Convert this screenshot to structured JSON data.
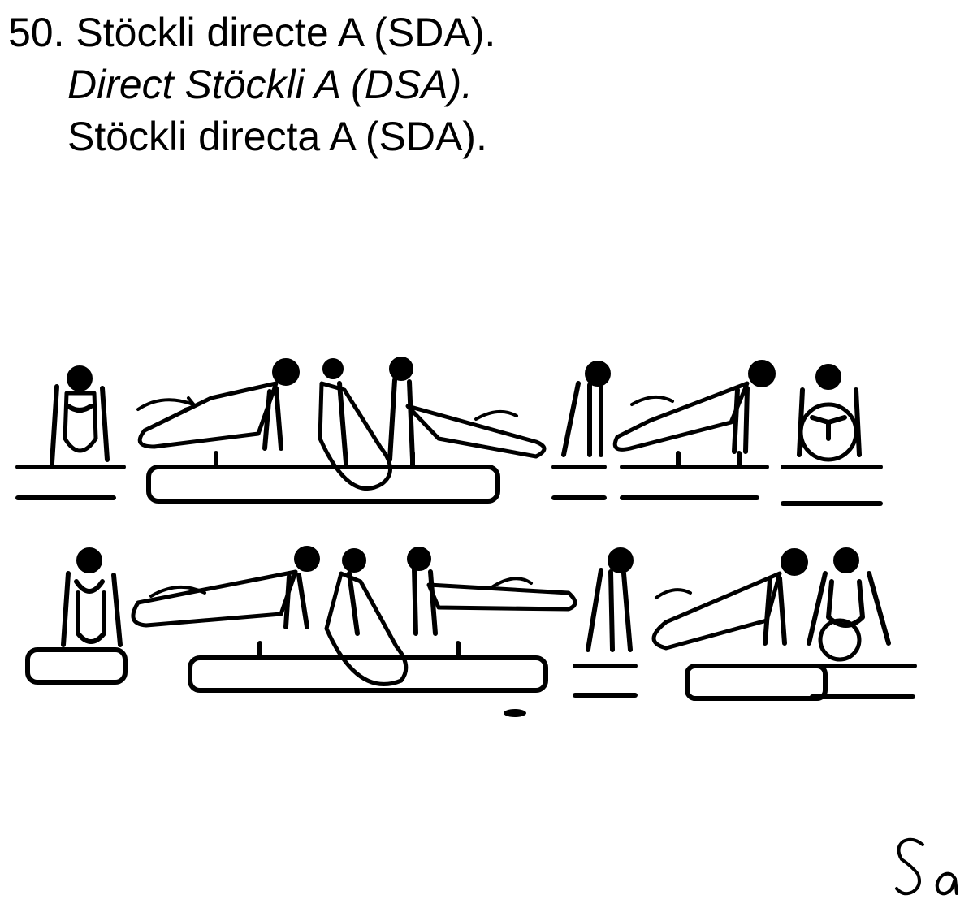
{
  "header": {
    "line_fr": "50. Stöckli directe A (SDA).",
    "line_en": "Direct Stöckli A (DSA).",
    "line_es": "Stöckli directa A (SDA)."
  },
  "figure": {
    "description_name": "pommel-horse-sequence",
    "rows": 2,
    "stick_color": "#000000",
    "background": "#ffffff"
  },
  "signature": {
    "text": "Sa"
  }
}
